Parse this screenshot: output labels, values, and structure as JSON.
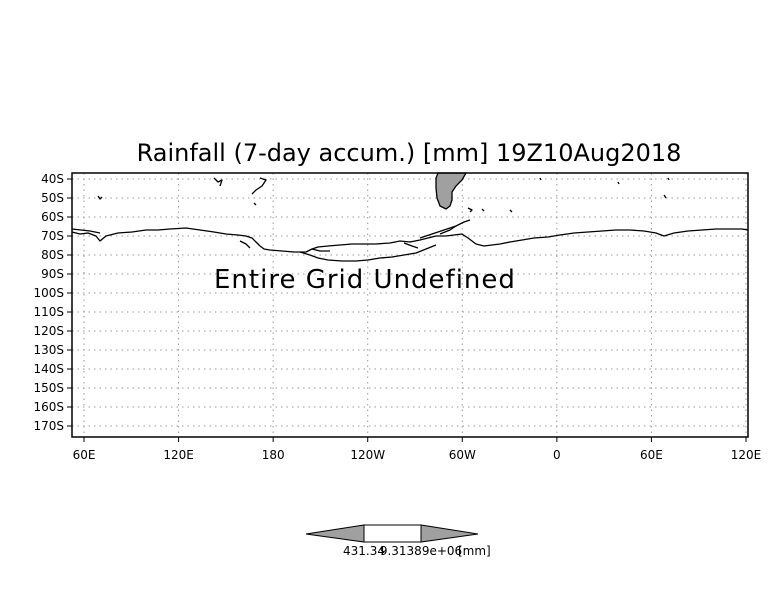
{
  "title": "Rainfall (7-day accum.) [mm] 19Z10Aug2018",
  "message": "Entire Grid Undefined",
  "lat_ticks": [
    "40S",
    "50S",
    "60S",
    "70S",
    "80S",
    "90S",
    "100S",
    "110S",
    "120S",
    "130S",
    "140S",
    "150S",
    "160S",
    "170S"
  ],
  "lon_ticks": [
    "60E",
    "120E",
    "180",
    "120W",
    "60W",
    "0",
    "60E",
    "120E"
  ],
  "colorbar": {
    "min_label": "431.34",
    "max_label": "9.31389e+06",
    "unit": "[mm]",
    "colors": {
      "arrow": "#a0a0a0",
      "middle": "#ffffff",
      "land": "#a0a0a0"
    }
  }
}
